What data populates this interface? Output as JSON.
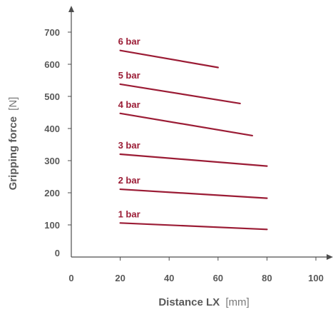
{
  "chart_data": {
    "type": "line",
    "title": "",
    "xlabel": {
      "name": "Distance LX",
      "unit": "[mm]"
    },
    "ylabel": {
      "name": "Gripping force",
      "unit": "[N]"
    },
    "xlim": [
      0,
      100
    ],
    "ylim": [
      0,
      700
    ],
    "x_ticks": [
      0,
      20,
      40,
      60,
      80,
      100
    ],
    "y_ticks": [
      0,
      100,
      200,
      300,
      400,
      500,
      600,
      700
    ],
    "grid": false,
    "legend": "inline labels",
    "series_color": "#9b1c35",
    "series": [
      {
        "name": "1 bar",
        "x": [
          20,
          80
        ],
        "y": [
          106,
          86
        ]
      },
      {
        "name": "2 bar",
        "x": [
          20,
          80
        ],
        "y": [
          211,
          183
        ]
      },
      {
        "name": "3 bar",
        "x": [
          20,
          80
        ],
        "y": [
          320,
          283
        ]
      },
      {
        "name": "4 bar",
        "x": [
          20,
          74
        ],
        "y": [
          447,
          378
        ]
      },
      {
        "name": "5 bar",
        "x": [
          20,
          69
        ],
        "y": [
          538,
          478
        ]
      },
      {
        "name": "6 bar",
        "x": [
          20,
          60
        ],
        "y": [
          643,
          590
        ]
      }
    ]
  }
}
